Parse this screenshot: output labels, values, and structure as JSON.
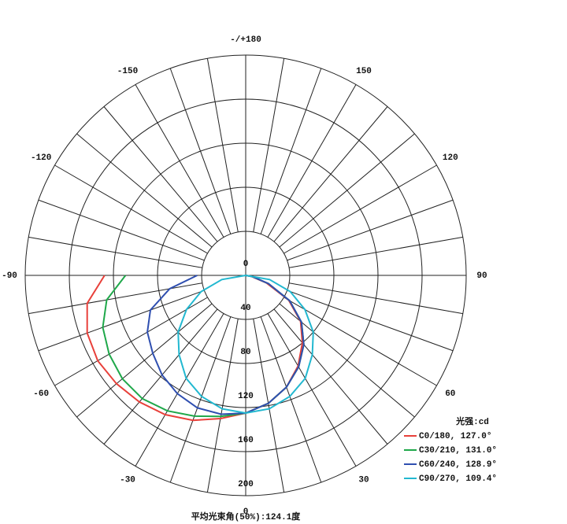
{
  "chart_data": {
    "type": "polar",
    "radial_label": "光强:cd",
    "footer": "平均光束角(50%):124.1度",
    "rlim": [
      0,
      200
    ],
    "rticks": [
      0,
      40,
      80,
      120,
      160,
      200
    ],
    "angle_ticks": [
      0,
      30,
      60,
      90,
      120,
      150,
      {
        "value": 180,
        "label": "-/+180"
      },
      -150,
      -120,
      -90,
      -60,
      -30
    ],
    "angles": [
      -90,
      -80,
      -70,
      -60,
      -50,
      -40,
      -30,
      -20,
      -10,
      0,
      10,
      20,
      30,
      40,
      50,
      60,
      70,
      80,
      90
    ],
    "series": [
      {
        "name": "C0/180, 127.0°",
        "color": "#e8403a",
        "values": [
          128,
          146,
          153,
          155,
          153,
          150,
          146,
          140,
          132,
          125,
          118,
          108,
          95,
          80,
          65,
          45,
          20,
          5,
          0
        ]
      },
      {
        "name": "C30/210, 131.0°",
        "color": "#1fa84a",
        "values": [
          109,
          128,
          138,
          143,
          146,
          146,
          142,
          136,
          130,
          125,
          118,
          108,
          96,
          82,
          66,
          46,
          22,
          6,
          0
        ]
      },
      {
        "name": "C60/240, 128.9°",
        "color": "#2f4fb0",
        "values": [
          44,
          70,
          92,
          103,
          110,
          118,
          124,
          128,
          128,
          125,
          118,
          108,
          96,
          82,
          66,
          46,
          22,
          6,
          0
        ]
      },
      {
        "name": "C90/270, 109.4°",
        "color": "#22b8d0",
        "values": [
          0,
          22,
          43,
          62,
          80,
          94,
          108,
          117,
          123,
          125,
          123,
          117,
          108,
          94,
          80,
          62,
          43,
          22,
          0
        ]
      }
    ]
  }
}
